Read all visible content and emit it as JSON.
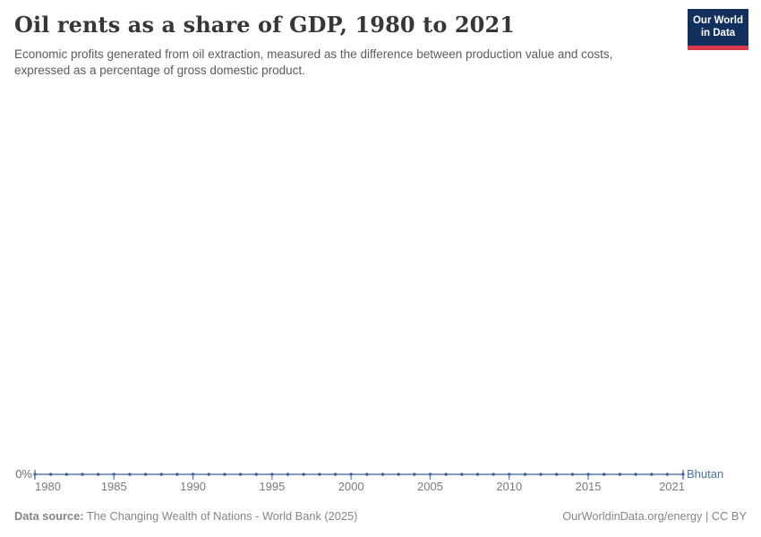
{
  "header": {
    "title": "Oil rents as a share of GDP, 1980 to 2021",
    "subtitle": "Economic profits generated from oil extraction, measured as the difference between production value and costs, expressed as a percentage of gross domestic product.",
    "logo": {
      "line1": "Our World",
      "line2": "in Data"
    }
  },
  "chart_data": {
    "type": "line",
    "title": "Oil rents as a share of GDP, 1980 to 2021",
    "unit": "%",
    "x": [
      1980,
      1981,
      1982,
      1983,
      1984,
      1985,
      1986,
      1987,
      1988,
      1989,
      1990,
      1991,
      1992,
      1993,
      1994,
      1995,
      1996,
      1997,
      1998,
      1999,
      2000,
      2001,
      2002,
      2003,
      2004,
      2005,
      2006,
      2007,
      2008,
      2009,
      2010,
      2011,
      2012,
      2013,
      2014,
      2015,
      2016,
      2017,
      2018,
      2019,
      2020,
      2021
    ],
    "series": [
      {
        "name": "Bhutan",
        "values": [
          0,
          0,
          0,
          0,
          0,
          0,
          0,
          0,
          0,
          0,
          0,
          0,
          0,
          0,
          0,
          0,
          0,
          0,
          0,
          0,
          0,
          0,
          0,
          0,
          0,
          0,
          0,
          0,
          0,
          0,
          0,
          0,
          0,
          0,
          0,
          0,
          0,
          0,
          0,
          0,
          0,
          0
        ]
      }
    ],
    "x_ticks": [
      1980,
      1985,
      1990,
      1995,
      2000,
      2005,
      2010,
      2015,
      2021
    ],
    "y_ticks": [
      "0%"
    ],
    "y_zero_label": "0%",
    "xlim": [
      1980,
      2021
    ],
    "grid": false,
    "legend_position": "end-of-line",
    "marker": "dot"
  },
  "colors": {
    "line": "#5b7cb5",
    "marker": "#40619b",
    "entity_label": "#4c6fa5",
    "logo_bg": "#12305e",
    "logo_stripe": "#d93a4a",
    "title": "#373737",
    "subtitle": "#5b5b5b",
    "axis_text": "#7a7a7a",
    "footer_text": "#858585"
  },
  "footer": {
    "datasource_label": "Data source:",
    "datasource_value": " The Changing Wealth of Nations - World Bank (2025)",
    "credit": "OurWorldinData.org/energy | CC BY"
  }
}
